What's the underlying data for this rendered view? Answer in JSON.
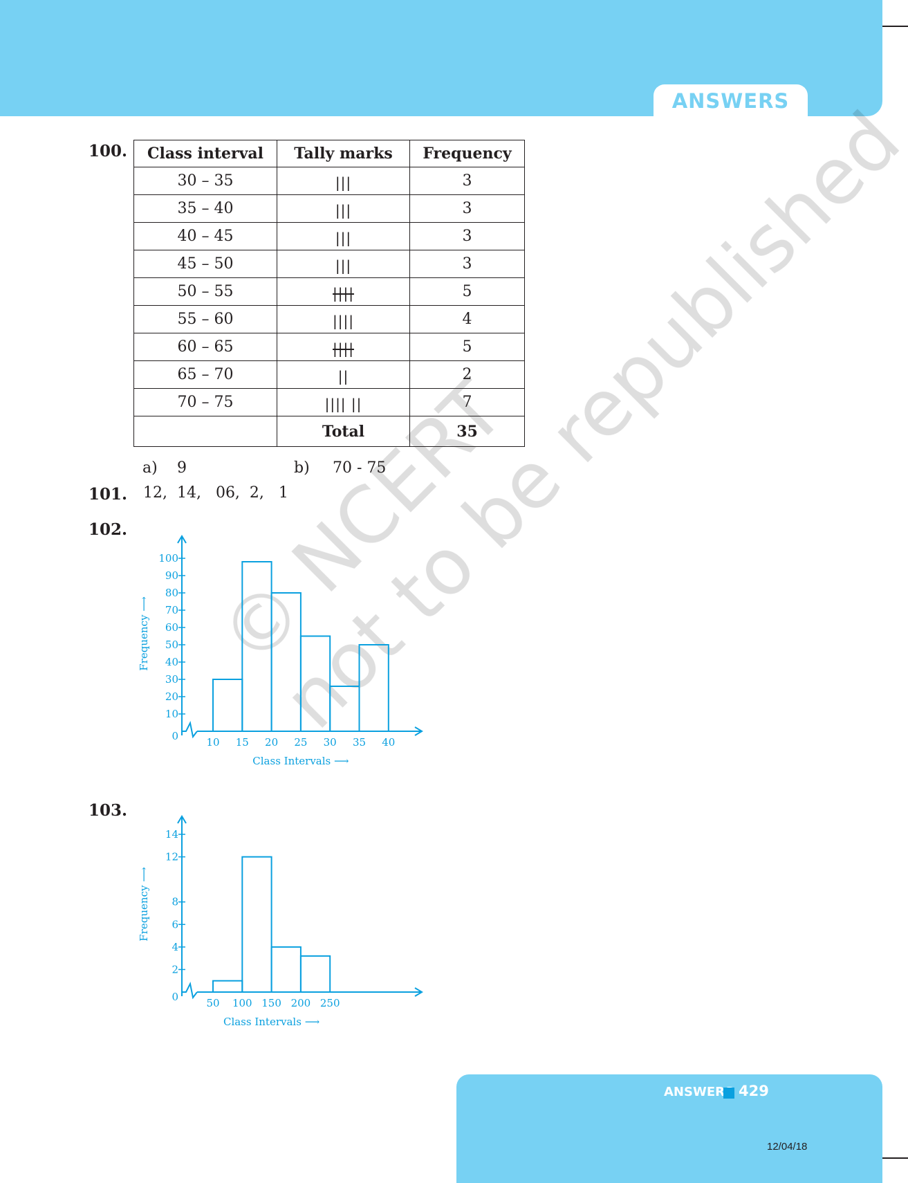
{
  "header": {
    "tab_label": "ANSWERS"
  },
  "q100": {
    "number": "100.",
    "columns": [
      "Class interval",
      "Tally marks",
      "Frequency"
    ],
    "rows": [
      {
        "interval": "30 – 35",
        "tally": "|||",
        "frequency": "3"
      },
      {
        "interval": "35 – 40",
        "tally": "|||",
        "frequency": "3"
      },
      {
        "interval": "40 – 45",
        "tally": "|||",
        "frequency": "3"
      },
      {
        "interval": "45 – 50",
        "tally": "|||",
        "frequency": "3"
      },
      {
        "interval": "50 – 55",
        "tally": "||||",
        "frequency": "5"
      },
      {
        "interval": "55 – 60",
        "tally": "||||",
        "frequency": "4"
      },
      {
        "interval": "60 – 65",
        "tally": "||||",
        "frequency": "5"
      },
      {
        "interval": "65 – 70",
        "tally": "||",
        "frequency": "2"
      },
      {
        "interval": "70 – 75",
        "tally": "|||| ||",
        "frequency": "7"
      }
    ],
    "total_label": "Total",
    "total_value": "35",
    "answer_a_label": "a)",
    "answer_a_value": "9",
    "answer_b_label": "b)",
    "answer_b_value": "70 - 75"
  },
  "q101": {
    "number": "101.",
    "answer": "12,  14,   06,  2,   1"
  },
  "q102": {
    "number": "102."
  },
  "q103": {
    "number": "103."
  },
  "watermark": {
    "line1": "© NCERT",
    "line2": "not to be republished"
  },
  "chart_data": [
    {
      "type": "bar",
      "categories": [
        "10 – 15",
        "15 – 20",
        "20 – 25",
        "25 – 30",
        "30 – 35",
        "35 – 40"
      ],
      "values": [
        30,
        98,
        80,
        55,
        26,
        50
      ],
      "xticks": [
        "10",
        "15",
        "20",
        "25",
        "30",
        "35",
        "40"
      ],
      "yticks": [
        "0",
        "10",
        "20",
        "30",
        "40",
        "50",
        "60",
        "70",
        "80",
        "90",
        "100"
      ],
      "xlabel": "Class Intervals ⟶",
      "ylabel": "Frequency ⟶",
      "ylim": [
        0,
        100
      ],
      "axis_color": "#0aa0df"
    },
    {
      "type": "bar",
      "categories": [
        "50 – 100",
        "100 – 150",
        "150 – 200",
        "200 – 250"
      ],
      "values": [
        1,
        12,
        4,
        3.2
      ],
      "xticks": [
        "50",
        "100",
        "150",
        "200",
        "250"
      ],
      "yticks": [
        "0",
        "2",
        "4",
        "6",
        "8",
        "12",
        "14"
      ],
      "xlabel": "Class Intervals ⟶",
      "ylabel": "Frequency ⟶",
      "ylim": [
        0,
        14
      ],
      "axis_color": "#0aa0df"
    }
  ],
  "footer": {
    "label": "ANSWERS",
    "page": "429",
    "date": "12/04/18"
  }
}
